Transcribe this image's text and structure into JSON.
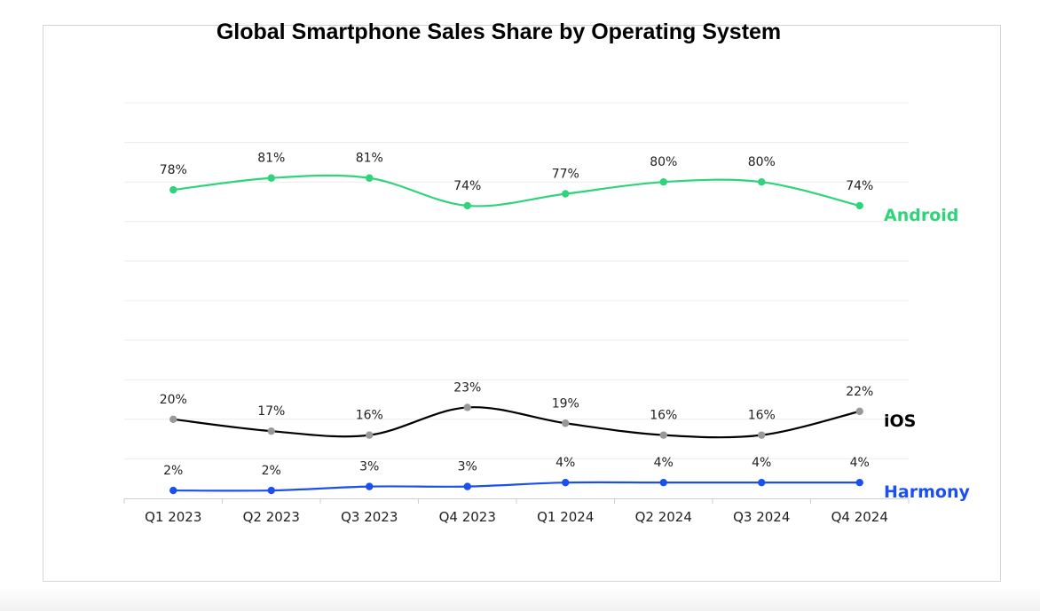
{
  "colors": {
    "android": "#2ed47a",
    "ios": "#000000",
    "ios_marker": "#999999",
    "harmony": "#1a4ff0",
    "grid": "#ececec"
  },
  "chart_data": {
    "type": "line",
    "title": "Global Smartphone Sales Share by Operating System",
    "categories": [
      "Q1 2023",
      "Q2 2023",
      "Q3 2023",
      "Q4 2023",
      "Q1 2024",
      "Q2 2024",
      "Q3 2024",
      "Q4 2024"
    ],
    "ylim": [
      0,
      100
    ],
    "grid": true,
    "legend": "series labels at right end of each line",
    "series": [
      {
        "name": "Android",
        "key": "android",
        "values": [
          78,
          81,
          81,
          74,
          77,
          80,
          80,
          74
        ],
        "labels": [
          "78%",
          "81%",
          "81%",
          "74%",
          "77%",
          "80%",
          "80%",
          "74%"
        ]
      },
      {
        "name": "iOS",
        "key": "ios",
        "values": [
          20,
          17,
          16,
          23,
          19,
          16,
          16,
          22
        ],
        "labels": [
          "20%",
          "17%",
          "16%",
          "23%",
          "19%",
          "16%",
          "16%",
          "22%"
        ]
      },
      {
        "name": "Harmony",
        "key": "harmony",
        "values": [
          2,
          2,
          3,
          3,
          4,
          4,
          4,
          4
        ],
        "labels": [
          "2%",
          "2%",
          "3%",
          "3%",
          "4%",
          "4%",
          "4%",
          "4%"
        ]
      }
    ]
  }
}
